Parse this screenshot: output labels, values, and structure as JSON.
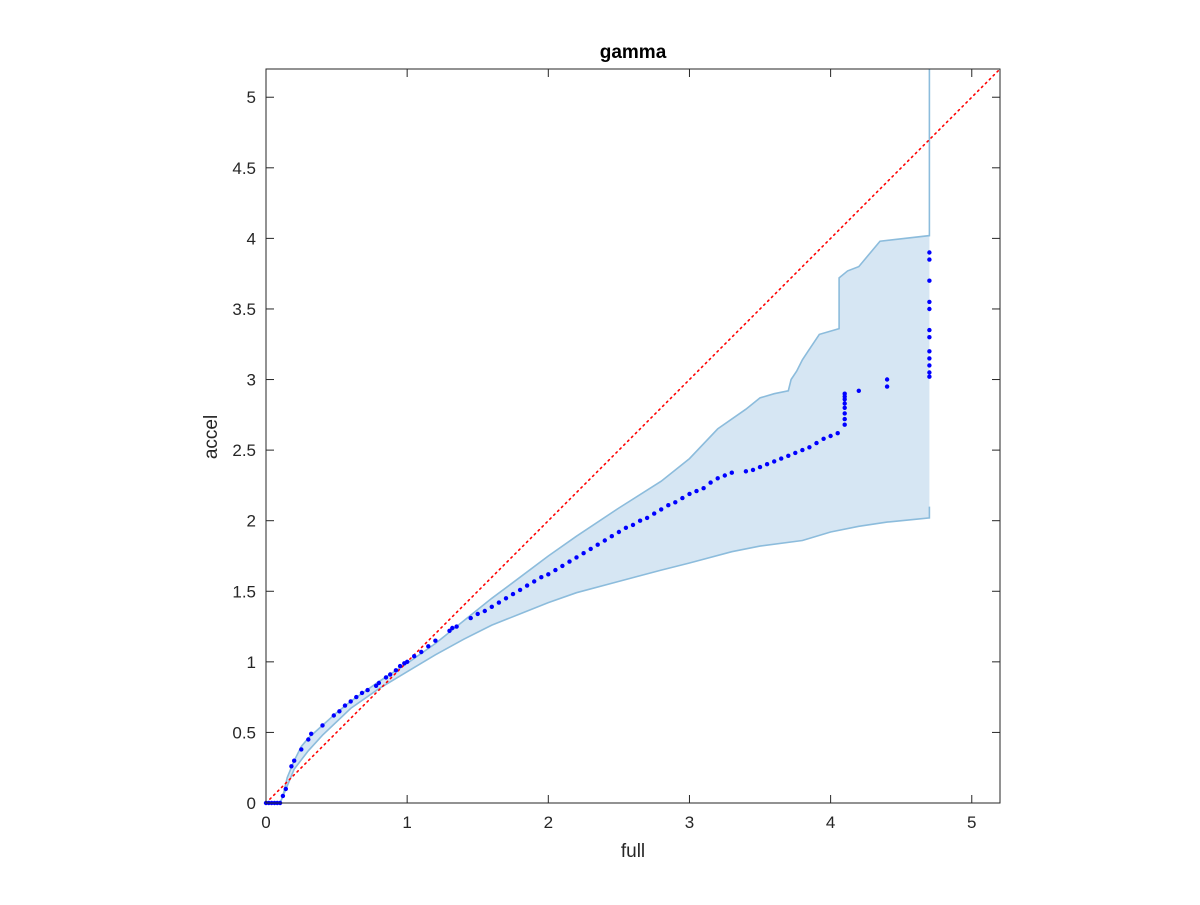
{
  "chart_data": {
    "type": "scatter",
    "title": "gamma",
    "xlabel": "full",
    "ylabel": "accel",
    "xlim": [
      0,
      5.2
    ],
    "ylim": [
      0,
      5.2
    ],
    "xticks": [
      0,
      1,
      2,
      3,
      4,
      5
    ],
    "yticks": [
      0,
      0.5,
      1,
      1.5,
      2,
      2.5,
      3,
      3.5,
      4,
      4.5,
      5
    ],
    "xtick_labels": [
      "0",
      "1",
      "2",
      "3",
      "4",
      "5"
    ],
    "ytick_labels": [
      "0",
      "0.5",
      "1",
      "1.5",
      "2",
      "2.5",
      "3",
      "3.5",
      "4",
      "4.5",
      "5"
    ],
    "grid": false,
    "box": true,
    "colors": {
      "points": "#0000ff",
      "band_fill": "#d6e6f3",
      "band_edge": "#8cbcdc",
      "reference_line": "#ff0000",
      "axes": "#262626"
    },
    "reference_line": {
      "style": "dotted",
      "from": [
        0,
        0
      ],
      "to": [
        5.2,
        5.2
      ]
    },
    "band": {
      "upper": [
        [
          0.1,
          0.0
        ],
        [
          0.12,
          0.05
        ],
        [
          0.15,
          0.18
        ],
        [
          0.2,
          0.3
        ],
        [
          0.25,
          0.4
        ],
        [
          0.3,
          0.46
        ],
        [
          0.4,
          0.55
        ],
        [
          0.5,
          0.64
        ],
        [
          0.6,
          0.72
        ],
        [
          0.8,
          0.86
        ],
        [
          1.0,
          0.99
        ],
        [
          1.2,
          1.13
        ],
        [
          1.4,
          1.29
        ],
        [
          1.6,
          1.45
        ],
        [
          1.8,
          1.6
        ],
        [
          2.0,
          1.75
        ],
        [
          2.2,
          1.89
        ],
        [
          2.5,
          2.09
        ],
        [
          2.8,
          2.28
        ],
        [
          3.0,
          2.44
        ],
        [
          3.2,
          2.65
        ],
        [
          3.4,
          2.79
        ],
        [
          3.5,
          2.87
        ],
        [
          3.6,
          2.9
        ],
        [
          3.7,
          2.92
        ],
        [
          3.72,
          3.0
        ],
        [
          3.76,
          3.06
        ],
        [
          3.8,
          3.14
        ],
        [
          3.84,
          3.2
        ],
        [
          3.88,
          3.26
        ],
        [
          3.92,
          3.32
        ],
        [
          4.06,
          3.36
        ],
        [
          4.06,
          3.72
        ],
        [
          4.12,
          3.77
        ],
        [
          4.2,
          3.8
        ],
        [
          4.35,
          3.98
        ],
        [
          4.7,
          4.02
        ],
        [
          4.7,
          5.2
        ]
      ],
      "lower": [
        [
          0.1,
          0.0
        ],
        [
          0.15,
          0.12
        ],
        [
          0.2,
          0.24
        ],
        [
          0.3,
          0.37
        ],
        [
          0.4,
          0.48
        ],
        [
          0.6,
          0.67
        ],
        [
          0.8,
          0.81
        ],
        [
          1.0,
          0.93
        ],
        [
          1.2,
          1.05
        ],
        [
          1.4,
          1.16
        ],
        [
          1.6,
          1.26
        ],
        [
          1.8,
          1.34
        ],
        [
          2.0,
          1.42
        ],
        [
          2.2,
          1.49
        ],
        [
          2.5,
          1.57
        ],
        [
          2.8,
          1.65
        ],
        [
          3.0,
          1.7
        ],
        [
          3.3,
          1.78
        ],
        [
          3.5,
          1.82
        ],
        [
          3.8,
          1.86
        ],
        [
          4.0,
          1.92
        ],
        [
          4.2,
          1.96
        ],
        [
          4.4,
          1.99
        ],
        [
          4.6,
          2.01
        ],
        [
          4.7,
          2.02
        ],
        [
          4.7,
          2.1
        ]
      ]
    },
    "points": {
      "x": [
        0.0,
        0.02,
        0.04,
        0.06,
        0.08,
        0.1,
        0.12,
        0.14,
        0.18,
        0.2,
        0.25,
        0.3,
        0.32,
        0.4,
        0.48,
        0.52,
        0.56,
        0.6,
        0.64,
        0.68,
        0.72,
        0.78,
        0.8,
        0.85,
        0.88,
        0.92,
        0.95,
        0.98,
        1.0,
        1.05,
        1.1,
        1.15,
        1.2,
        1.3,
        1.32,
        1.35,
        1.45,
        1.5,
        1.55,
        1.6,
        1.65,
        1.7,
        1.75,
        1.8,
        1.85,
        1.9,
        1.95,
        2.0,
        2.05,
        2.1,
        2.15,
        2.2,
        2.25,
        2.3,
        2.35,
        2.4,
        2.45,
        2.5,
        2.55,
        2.6,
        2.65,
        2.7,
        2.75,
        2.8,
        2.85,
        2.9,
        2.95,
        3.0,
        3.05,
        3.1,
        3.15,
        3.2,
        3.25,
        3.3,
        3.4,
        3.45,
        3.5,
        3.55,
        3.6,
        3.65,
        3.7,
        3.75,
        3.8,
        3.85,
        3.9,
        3.95,
        4.0,
        4.05,
        4.1,
        4.1,
        4.1,
        4.1,
        4.1,
        4.1,
        4.1,
        4.1,
        4.2,
        4.4,
        4.4,
        4.7,
        4.7,
        4.7,
        4.7,
        4.7,
        4.7,
        4.7,
        4.7,
        4.7,
        4.7,
        4.7,
        4.7
      ],
      "y": [
        0.0,
        0.0,
        0.0,
        0.0,
        0.0,
        0.0,
        0.05,
        0.1,
        0.26,
        0.3,
        0.38,
        0.45,
        0.49,
        0.55,
        0.62,
        0.65,
        0.69,
        0.72,
        0.75,
        0.78,
        0.8,
        0.83,
        0.85,
        0.89,
        0.91,
        0.94,
        0.97,
        0.99,
        1.0,
        1.04,
        1.07,
        1.11,
        1.15,
        1.22,
        1.24,
        1.25,
        1.31,
        1.34,
        1.36,
        1.39,
        1.42,
        1.45,
        1.48,
        1.51,
        1.54,
        1.57,
        1.6,
        1.62,
        1.65,
        1.68,
        1.71,
        1.74,
        1.77,
        1.8,
        1.83,
        1.86,
        1.89,
        1.92,
        1.95,
        1.97,
        2.0,
        2.02,
        2.05,
        2.08,
        2.11,
        2.13,
        2.16,
        2.19,
        2.21,
        2.23,
        2.27,
        2.3,
        2.32,
        2.34,
        2.35,
        2.36,
        2.38,
        2.4,
        2.42,
        2.44,
        2.46,
        2.48,
        2.5,
        2.52,
        2.55,
        2.58,
        2.6,
        2.62,
        2.68,
        2.72,
        2.76,
        2.8,
        2.83,
        2.86,
        2.88,
        2.9,
        2.92,
        2.95,
        3.0,
        3.02,
        3.05,
        3.1,
        3.15,
        3.2,
        3.3,
        3.35,
        3.5,
        3.55,
        3.7,
        3.85,
        3.9
      ]
    }
  }
}
